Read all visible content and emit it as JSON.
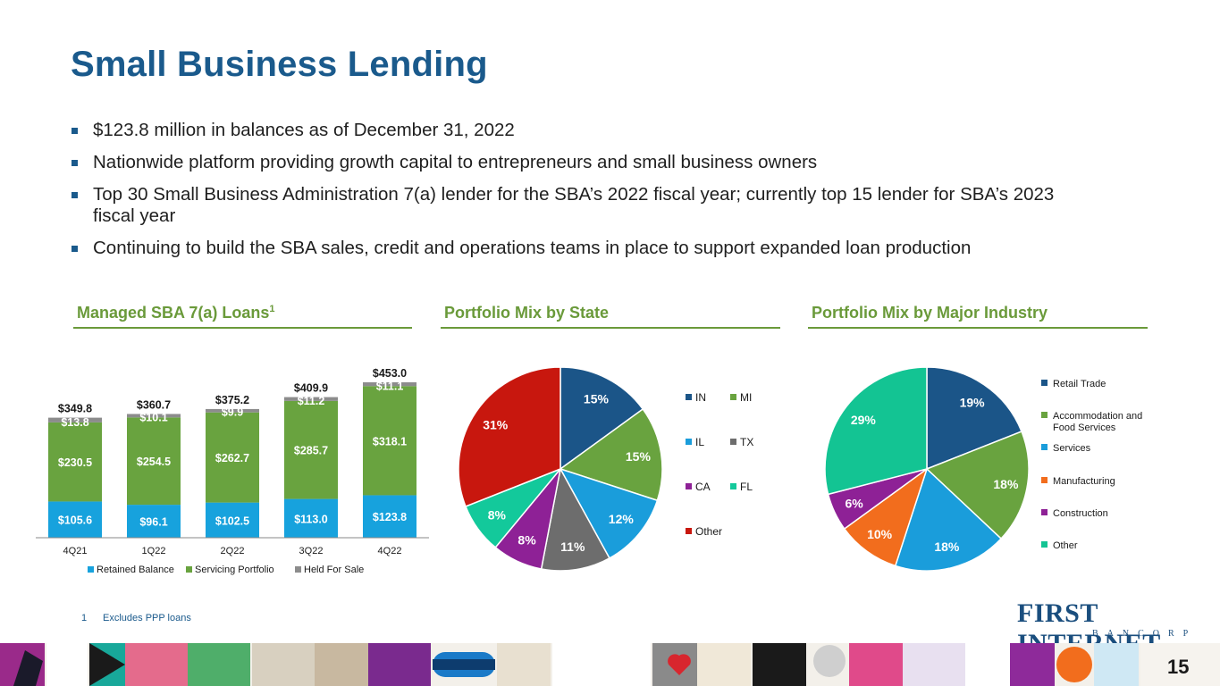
{
  "title": "Small Business Lending",
  "bullets": [
    "$123.8 million in balances as of December 31, 2022",
    "Nationwide platform providing growth capital to entrepreneurs and small business owners",
    "Top 30 Small Business Administration 7(a) lender for the SBA’s 2022 fiscal year; currently top 15 lender for SBA’s 2023 fiscal year",
    "Continuing to build the SBA sales, credit and operations teams in place to support expanded loan production"
  ],
  "sections": {
    "sba": {
      "title": "Managed SBA 7(a) Loans",
      "sup": "1"
    },
    "state": {
      "title": "Portfolio Mix by State"
    },
    "industry": {
      "title": "Portfolio Mix by Major Industry"
    }
  },
  "footnote": {
    "num": "1",
    "text": "Excludes PPP loans"
  },
  "logo": {
    "name": "FIRST INTERNET",
    "sub": "BANCORP"
  },
  "page_number": "15",
  "chart_data": [
    {
      "type": "bar",
      "stacked": true,
      "categories": [
        "4Q21",
        "1Q22",
        "2Q22",
        "3Q22",
        "4Q22"
      ],
      "series": [
        {
          "name": "Retained Balance",
          "color": "#17a2dd",
          "values": [
            105.6,
            96.1,
            102.5,
            113.0,
            123.8
          ],
          "labels": [
            "$105.6",
            "$96.1",
            "$102.5",
            "$113.0",
            "$123.8"
          ]
        },
        {
          "name": "Servicing Portfolio",
          "color": "#69a33f",
          "values": [
            230.5,
            254.5,
            262.7,
            285.7,
            318.1
          ],
          "labels": [
            "$230.5",
            "$254.5",
            "$262.7",
            "$285.7",
            "$318.1"
          ]
        },
        {
          "name": "Held For Sale",
          "color": "#8c8c8c",
          "values": [
            13.8,
            10.1,
            9.9,
            11.2,
            11.1
          ],
          "labels": [
            "$13.8",
            "$10.1",
            "$9.9",
            "$11.2",
            "$11.1"
          ]
        }
      ],
      "totals": [
        "$349.8",
        "$360.7",
        "$375.2",
        "$409.9",
        "$453.0"
      ],
      "legend_position": "bottom",
      "ylim": [
        0,
        453
      ]
    },
    {
      "type": "pie",
      "labels": [
        "IN",
        "MI",
        "IL",
        "TX",
        "CA",
        "FL",
        "Other"
      ],
      "values": [
        15,
        15,
        12,
        11,
        8,
        8,
        31
      ],
      "value_labels": [
        "15%",
        "15%",
        "12%",
        "11%",
        "8%",
        "8%",
        "31%"
      ],
      "colors": [
        "#1b5588",
        "#69a33f",
        "#1a9ddb",
        "#6d6d6d",
        "#8e2196",
        "#13c99b",
        "#c8170e"
      ],
      "legend_position": "right"
    },
    {
      "type": "pie",
      "labels": [
        "Retail Trade",
        "Accommodation and Food Services",
        "Services",
        "Manufacturing",
        "Construction",
        "Other"
      ],
      "values": [
        19,
        18,
        18,
        10,
        6,
        29
      ],
      "value_labels": [
        "19%",
        "18%",
        "18%",
        "10%",
        "6%",
        "29%"
      ],
      "colors": [
        "#1b5588",
        "#69a33f",
        "#1a9ddb",
        "#f26d1d",
        "#8e2196",
        "#13c493"
      ],
      "legend_position": "right"
    }
  ]
}
